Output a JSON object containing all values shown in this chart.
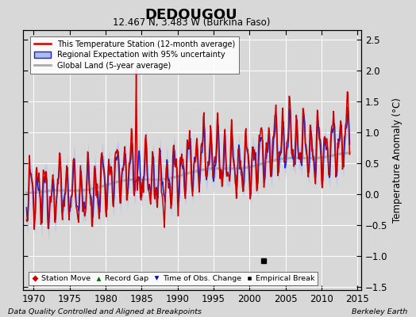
{
  "title": "DEDOUGOU",
  "subtitle": "12.467 N, 3.483 W (Burkina Faso)",
  "ylabel": "Temperature Anomaly (°C)",
  "footer_left": "Data Quality Controlled and Aligned at Breakpoints",
  "footer_right": "Berkeley Earth",
  "xlim": [
    1968.5,
    2015.5
  ],
  "ylim": [
    -1.55,
    2.65
  ],
  "yticks": [
    -1.5,
    -1.0,
    -0.5,
    0.0,
    0.5,
    1.0,
    1.5,
    2.0,
    2.5
  ],
  "xticks": [
    1970,
    1975,
    1980,
    1985,
    1990,
    1995,
    2000,
    2005,
    2010,
    2015
  ],
  "bg_color": "#d8d8d8",
  "plot_bg": "#d8d8d8",
  "grid_color": "#ffffff",
  "empirical_break_x": 2002.0,
  "empirical_break_y": -1.07,
  "legend_entries": [
    "This Temperature Station (12-month average)",
    "Regional Expectation with 95% uncertainty",
    "Global Land (5-year average)"
  ],
  "line_colors": {
    "station": "#cc0000",
    "regional": "#2222cc",
    "regional_fill": "#aabbee",
    "global": "#aaaaaa"
  }
}
